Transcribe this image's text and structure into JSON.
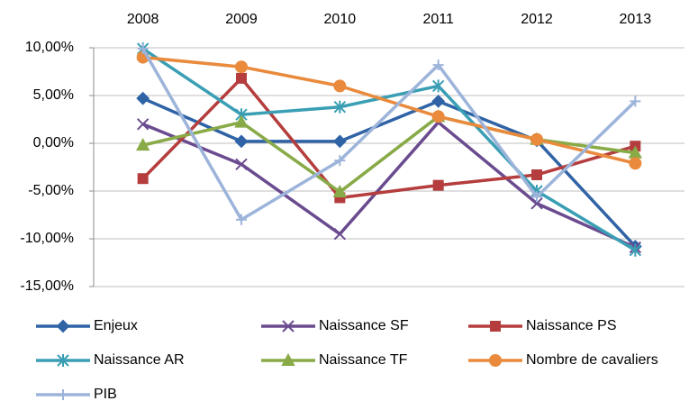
{
  "chart_data": {
    "type": "line",
    "categories": [
      "2008",
      "2009",
      "2010",
      "2011",
      "2012",
      "2013"
    ],
    "ylim": [
      -15,
      10
    ],
    "yticks": [
      {
        "value": -15,
        "label": "-15,00%"
      },
      {
        "value": -10,
        "label": "-10,00%"
      },
      {
        "value": -5,
        "label": "-5,00%"
      },
      {
        "value": 0,
        "label": "0,00%"
      },
      {
        "value": 5,
        "label": "5,00%"
      },
      {
        "value": 10,
        "label": "10,00%"
      }
    ],
    "grid": true,
    "legend": "bottom",
    "series": [
      {
        "name": "Enjeux",
        "color": "#2f63a6",
        "marker": "diamond",
        "values": [
          4.7,
          0.2,
          0.2,
          4.4,
          0.3,
          -10.8
        ]
      },
      {
        "name": "Naissance SF",
        "color": "#6b4b8f",
        "marker": "x",
        "values": [
          2.0,
          -2.2,
          -9.5,
          2.2,
          -6.3,
          -10.9
        ]
      },
      {
        "name": "Naissance PS",
        "color": "#b53d3d",
        "marker": "square",
        "values": [
          -3.7,
          6.8,
          -5.7,
          -4.4,
          -3.3,
          -0.3
        ]
      },
      {
        "name": "Naissance AR",
        "color": "#3a9fb4",
        "marker": "star",
        "values": [
          9.9,
          3.0,
          3.8,
          6.0,
          -5.0,
          -11.2
        ]
      },
      {
        "name": "Naissance TF",
        "color": "#88aa47",
        "marker": "triangle",
        "values": [
          -0.2,
          2.2,
          -5.1,
          2.8,
          0.4,
          -1.0
        ]
      },
      {
        "name": "Nombre de cavaliers",
        "color": "#e98a3c",
        "marker": "circle",
        "values": [
          9.0,
          8.0,
          6.0,
          2.8,
          0.4,
          -2.1
        ]
      },
      {
        "name": "PIB",
        "color": "#9db4da",
        "marker": "plus",
        "values": [
          9.9,
          -8.0,
          -1.8,
          8.2,
          -5.6,
          4.4
        ]
      }
    ]
  }
}
